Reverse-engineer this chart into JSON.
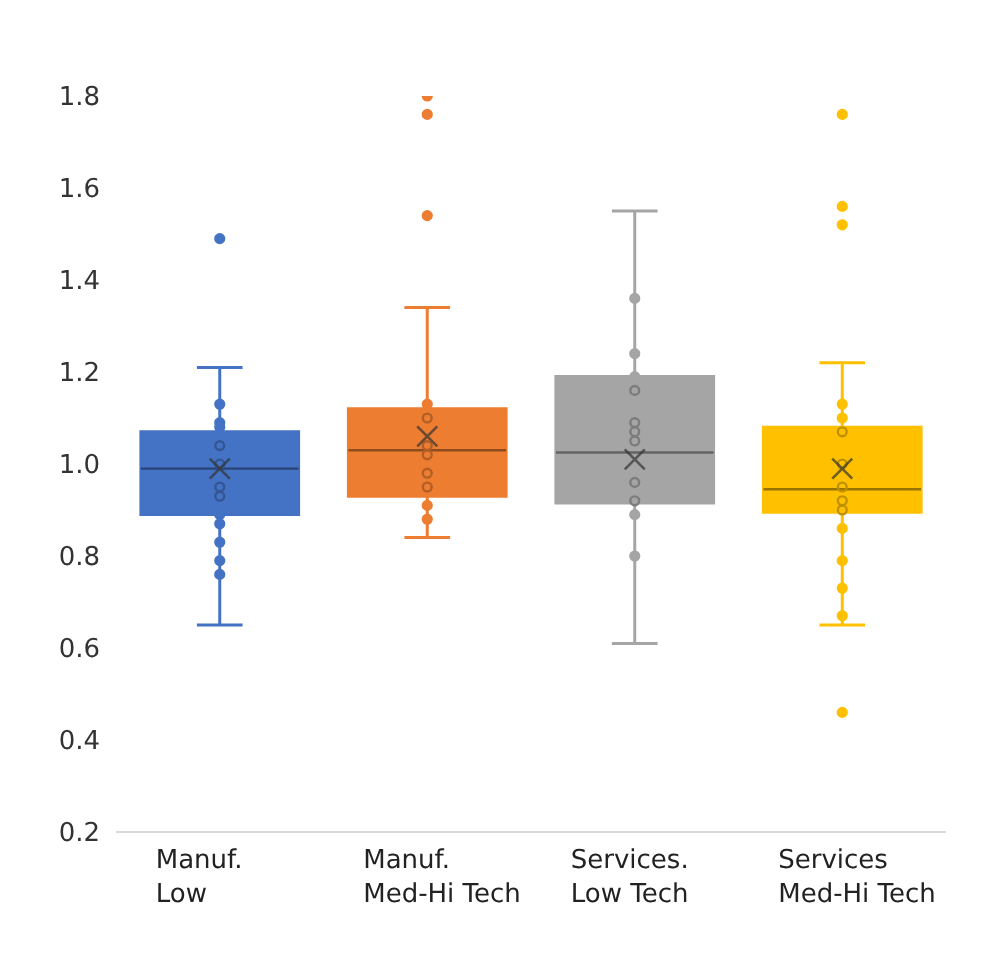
{
  "chart_data": {
    "type": "box",
    "categories": [
      "Manuf. Low",
      "Manuf. Med-Hi Tech",
      "Services. Low Tech",
      "Services Med-Hi Tech"
    ],
    "colors": [
      "#4472c4",
      "#ed7d31",
      "#a5a5a5",
      "#ffc000"
    ],
    "boxes": [
      {
        "low": 0.65,
        "q1": 0.89,
        "median": 0.99,
        "q3": 1.07,
        "high": 1.21,
        "mean": 0.99,
        "outliers": [
          1.49
        ]
      },
      {
        "low": 0.84,
        "q1": 0.93,
        "median": 1.03,
        "q3": 1.12,
        "high": 1.34,
        "mean": 1.06,
        "outliers": [
          1.54,
          1.76,
          1.8
        ]
      },
      {
        "low": 0.61,
        "q1": 0.915,
        "median": 1.025,
        "q3": 1.19,
        "high": 1.55,
        "mean": 1.01
      },
      {
        "low": 0.65,
        "q1": 0.895,
        "median": 0.945,
        "q3": 1.08,
        "high": 1.22,
        "mean": 0.99,
        "outliers": [
          0.46,
          1.52,
          1.56,
          1.76
        ]
      }
    ],
    "series": [
      {
        "type": "scatter",
        "color": "#4472c4",
        "x": [
          "Manuf. Low",
          "Manuf. Low",
          "Manuf. Low",
          "Manuf. Low",
          "Manuf. Low",
          "Manuf. Low",
          "Manuf. Low",
          "Manuf. Low",
          "Manuf. Low",
          "Manuf. Low",
          "Manuf. Low",
          "Manuf. Low"
        ],
        "values": [
          1.13,
          1.09,
          1.08,
          1.04,
          1.0,
          0.95,
          0.93,
          0.89,
          0.87,
          0.83,
          0.79,
          0.76
        ]
      },
      {
        "type": "scatter",
        "color": "#ed7d31",
        "x": [
          "Manuf. Med-Hi Tech",
          "Manuf. Med-Hi Tech",
          "Manuf. Med-Hi Tech",
          "Manuf. Med-Hi Tech",
          "Manuf. Med-Hi Tech",
          "Manuf. Med-Hi Tech",
          "Manuf. Med-Hi Tech",
          "Manuf. Med-Hi Tech"
        ],
        "values": [
          1.13,
          1.1,
          1.04,
          1.02,
          0.98,
          0.95,
          0.91,
          0.88
        ]
      },
      {
        "type": "scatter",
        "color": "#a5a5a5",
        "x": [
          "Services. Low Tech",
          "Services. Low Tech",
          "Services. Low Tech",
          "Services. Low Tech",
          "Services. Low Tech",
          "Services. Low Tech",
          "Services. Low Tech",
          "Services. Low Tech",
          "Services. Low Tech",
          "Services. Low Tech",
          "Services. Low Tech"
        ],
        "values": [
          1.36,
          1.24,
          1.19,
          1.16,
          1.09,
          1.07,
          1.05,
          0.96,
          0.92,
          0.89,
          0.8
        ]
      },
      {
        "type": "scatter",
        "color": "#ffc000",
        "x": [
          "Services Med-Hi Tech",
          "Services Med-Hi Tech",
          "Services Med-Hi Tech",
          "Services Med-Hi Tech",
          "Services Med-Hi Tech",
          "Services Med-Hi Tech",
          "Services Med-Hi Tech",
          "Services Med-Hi Tech",
          "Services Med-Hi Tech",
          "Services Med-Hi Tech",
          "Services Med-Hi Tech"
        ],
        "values": [
          1.13,
          1.1,
          1.07,
          1.0,
          0.95,
          0.92,
          0.9,
          0.86,
          0.79,
          0.73,
          0.67
        ]
      }
    ],
    "marker": "circle",
    "ylim": [
      0.2,
      1.8
    ],
    "yticks": [
      0.2,
      0.4,
      0.6,
      0.8,
      {
        "value": 1,
        "label": "1.0"
      },
      1.2,
      1.4,
      1.6,
      1.8
    ]
  }
}
